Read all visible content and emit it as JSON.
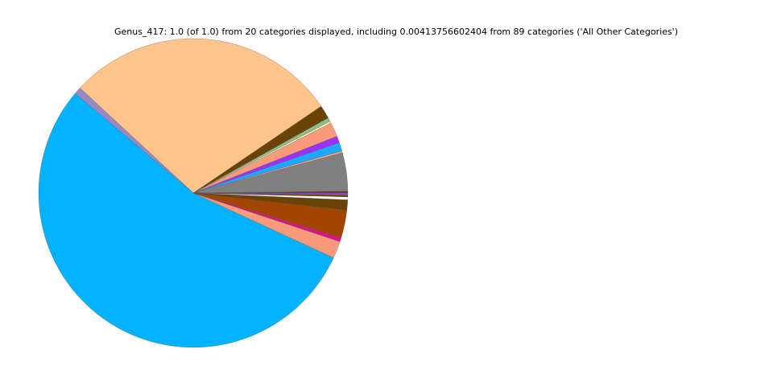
{
  "chart_data": {
    "type": "pie",
    "title": "Genus_417: 1.0 (of 1.0) from 20 categories displayed, including 0.00413756602404 from 89 categories ('All Other Categories')",
    "values": [
      0.002,
      0.04,
      0.002,
      0.009,
      0.007,
      0.015,
      0.002,
      0.004,
      0.014,
      0.286,
      0.0075,
      0.5425,
      0.018,
      0.004,
      0.029,
      0.011,
      0.003,
      0.002,
      0.001,
      0.001
    ],
    "colors": [
      "#6b4306",
      "#808080",
      "#f4a582",
      "#1ea8ff",
      "#9b30ff",
      "#f99a7c",
      "#ffffb3",
      "#8fbc8f",
      "#6b4306",
      "#fdc58a",
      "#9a87c4",
      "#00b2ff",
      "#f99a7c",
      "#e0108c",
      "#a24500",
      "#6b4306",
      "#ffffff",
      "#704010",
      "#808080",
      "#9b30ff"
    ],
    "start_angle": 0,
    "counterclockwise": true
  }
}
